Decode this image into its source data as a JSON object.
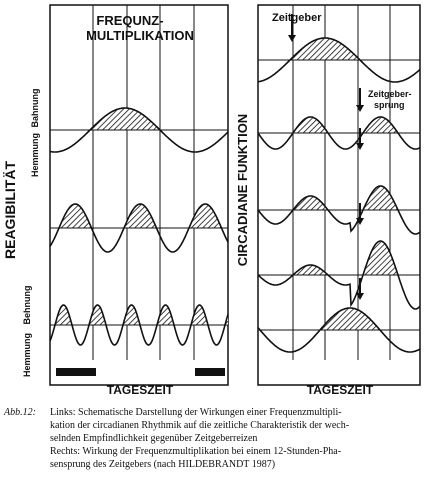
{
  "left": {
    "title": [
      "FREQUNZ-",
      "MULTIPLIKATION"
    ],
    "y_label": "REAGIBILITÄT",
    "upper_labels": [
      "Hemmung",
      "Bahnung"
    ],
    "lower_labels": [
      "Hemmung",
      "Behnung"
    ],
    "x_label": "TAGESZEIT"
  },
  "right": {
    "zeitgeber": "Zeitgeber",
    "sprung": [
      "Zeitgeber-",
      "sprung"
    ],
    "y_label": "CIRCADIANE FUNKTION",
    "x_label": "TAGESZEIT"
  },
  "caption": {
    "label": "Abb.12:",
    "lines": [
      "Links: Schematische Darstellung der Wirkungen einer Frequenzmultipli-",
      "kation der circadianen Rhythmik auf die zeitliche Charakteristik der wech-",
      "selnden Empfindlichkeit gegenüber Zeitgeberreizen",
      "Rechts: Wirkung der Frequenzmultiplikation bei einem 12-Stunden-Pha-",
      "sensprung des Zeitgebers (nach HILDEBRANDT 1987)"
    ]
  }
}
